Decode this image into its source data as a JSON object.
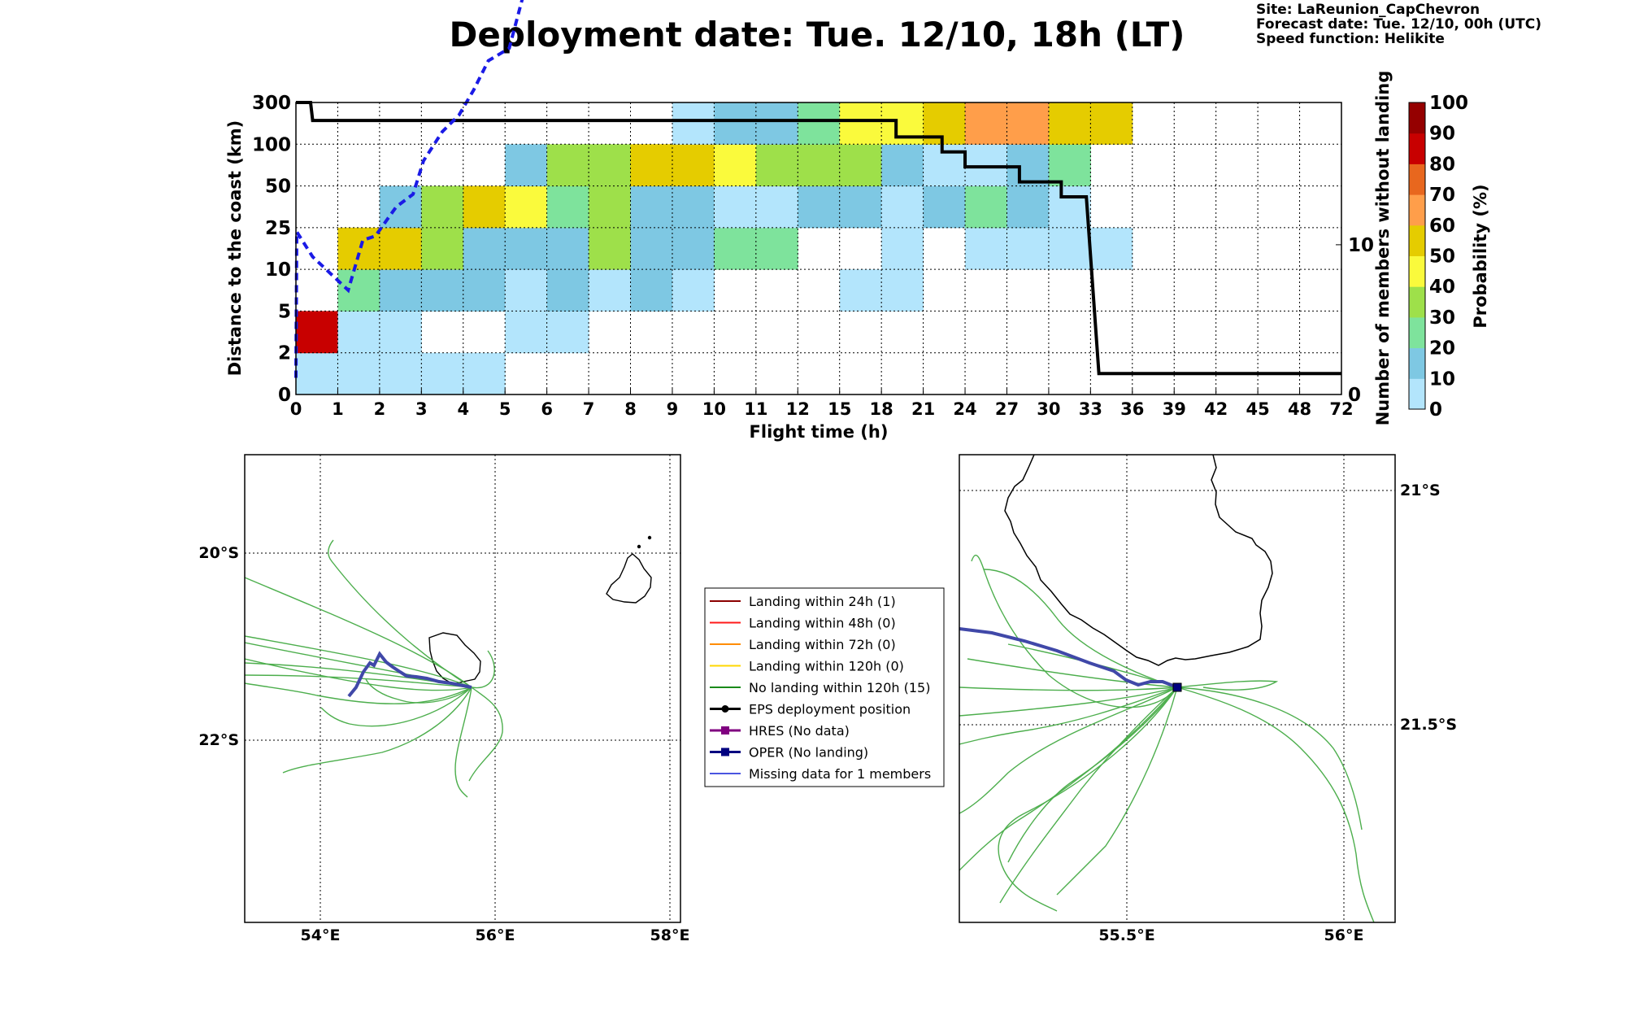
{
  "title": "Deployment date: Tue. 12/10, 18h (LT)",
  "meta": {
    "site": "Site: LaReunion_CapChevron",
    "forecast": "Forecast date: Tue. 12/10, 00h (UTC)",
    "speed": "Speed function: Helikite"
  },
  "chart_data": [
    {
      "type": "heatmap",
      "xlabel": "Flight time (h)",
      "ylabel": "Distance to the coast (km)",
      "y2label": "Number of members without landing",
      "x_tick_labels": [
        "0",
        "1",
        "2",
        "3",
        "4",
        "5",
        "6",
        "7",
        "8",
        "9",
        "10",
        "11",
        "12",
        "15",
        "18",
        "21",
        "24",
        "27",
        "30",
        "33",
        "36",
        "39",
        "42",
        "45",
        "48",
        "72"
      ],
      "y_tick_labels": [
        "0",
        "2",
        "5",
        "10",
        "25",
        "50",
        "100",
        "300"
      ],
      "y2_tick_labels": [
        "0",
        "10"
      ],
      "y2_lim": [
        0,
        19.5
      ],
      "grid": true,
      "colorbar": {
        "label": "Probability (%)",
        "ticks": [
          "0",
          "10",
          "20",
          "30",
          "40",
          "50",
          "60",
          "70",
          "80",
          "90",
          "100"
        ],
        "colors": [
          "#b3e5fc",
          "#7ec8e3",
          "#7ee39c",
          "#9ee04a",
          "#fafa3c",
          "#e5cc00",
          "#ff9e4a",
          "#e8671e",
          "#c80000",
          "#950000"
        ]
      },
      "cells": [
        [
          0,
          0,
          0
        ],
        [
          1,
          0,
          0
        ],
        [
          2,
          0,
          0
        ],
        [
          3,
          0,
          0
        ],
        [
          4,
          0,
          0
        ],
        [
          0,
          1,
          8
        ],
        [
          1,
          1,
          0
        ],
        [
          2,
          1,
          0
        ],
        [
          5,
          1,
          0
        ],
        [
          6,
          1,
          0
        ],
        [
          1,
          2,
          2
        ],
        [
          2,
          2,
          1
        ],
        [
          3,
          2,
          1
        ],
        [
          4,
          2,
          1
        ],
        [
          5,
          2,
          0
        ],
        [
          6,
          2,
          1
        ],
        [
          7,
          2,
          0
        ],
        [
          8,
          2,
          1
        ],
        [
          9,
          2,
          0
        ],
        [
          13,
          2,
          0
        ],
        [
          14,
          2,
          0
        ],
        [
          1,
          3,
          5
        ],
        [
          2,
          3,
          5
        ],
        [
          3,
          3,
          3
        ],
        [
          4,
          3,
          1
        ],
        [
          5,
          3,
          1
        ],
        [
          6,
          3,
          1
        ],
        [
          7,
          3,
          3
        ],
        [
          8,
          3,
          1
        ],
        [
          9,
          3,
          1
        ],
        [
          10,
          3,
          2
        ],
        [
          11,
          3,
          2
        ],
        [
          14,
          3,
          0
        ],
        [
          16,
          3,
          0
        ],
        [
          17,
          3,
          0
        ],
        [
          18,
          3,
          0
        ],
        [
          19,
          3,
          0
        ],
        [
          2,
          4,
          1
        ],
        [
          3,
          4,
          3
        ],
        [
          4,
          4,
          5
        ],
        [
          5,
          4,
          4
        ],
        [
          6,
          4,
          2
        ],
        [
          7,
          4,
          3
        ],
        [
          8,
          4,
          1
        ],
        [
          9,
          4,
          1
        ],
        [
          10,
          4,
          0
        ],
        [
          11,
          4,
          0
        ],
        [
          12,
          4,
          1
        ],
        [
          13,
          4,
          1
        ],
        [
          14,
          4,
          0
        ],
        [
          15,
          4,
          1
        ],
        [
          16,
          4,
          2
        ],
        [
          17,
          4,
          1
        ],
        [
          18,
          4,
          0
        ],
        [
          5,
          5,
          1
        ],
        [
          6,
          5,
          3
        ],
        [
          7,
          5,
          3
        ],
        [
          8,
          5,
          5
        ],
        [
          9,
          5,
          5
        ],
        [
          10,
          5,
          4
        ],
        [
          11,
          5,
          3
        ],
        [
          12,
          5,
          3
        ],
        [
          13,
          5,
          3
        ],
        [
          14,
          5,
          1
        ],
        [
          15,
          5,
          0
        ],
        [
          16,
          5,
          0
        ],
        [
          17,
          5,
          1
        ],
        [
          18,
          5,
          2
        ],
        [
          9,
          6,
          0
        ],
        [
          10,
          6,
          1
        ],
        [
          11,
          6,
          1
        ],
        [
          12,
          6,
          2
        ],
        [
          13,
          6,
          4
        ],
        [
          14,
          6,
          4
        ],
        [
          15,
          6,
          5
        ],
        [
          16,
          6,
          6
        ],
        [
          17,
          6,
          6
        ],
        [
          18,
          6,
          5
        ],
        [
          19,
          6,
          5
        ]
      ],
      "members_without_landing": [
        [
          0,
          19.5
        ],
        [
          0.35,
          19.5
        ],
        [
          0.4,
          18.3
        ],
        [
          14.35,
          18.3
        ],
        [
          14.35,
          17.2
        ],
        [
          15.45,
          17.2
        ],
        [
          15.45,
          16.2
        ],
        [
          16,
          16.2
        ],
        [
          16,
          15.2
        ],
        [
          17.3,
          15.2
        ],
        [
          17.3,
          14.2
        ],
        [
          18.3,
          14.2
        ],
        [
          18.3,
          13.2
        ],
        [
          18.9,
          13.2
        ],
        [
          19.2,
          1.4
        ],
        [
          25,
          1.4
        ]
      ],
      "oper_distance_km": [
        [
          0,
          0.4
        ],
        [
          0.02,
          3.9
        ],
        [
          0.4,
          3.3
        ],
        [
          1.25,
          2.5
        ],
        [
          1.6,
          3.7
        ],
        [
          1.9,
          3.8
        ],
        [
          2.4,
          4.5
        ],
        [
          2.8,
          4.8
        ],
        [
          3.05,
          5.6
        ],
        [
          3.5,
          6.3
        ],
        [
          3.9,
          6.7
        ],
        [
          4.25,
          7.3
        ],
        [
          4.6,
          8.0
        ],
        [
          5.1,
          8.3
        ],
        [
          5.55,
          10.0
        ],
        [
          6.1,
          11.7
        ],
        [
          7.0,
          14.0
        ],
        [
          7.9,
          17.2
        ],
        [
          8.5,
          19.5
        ],
        [
          9.5,
          23.0
        ],
        [
          10.2,
          25.2
        ],
        [
          11.5,
          29.0
        ],
        [
          12.5,
          34.0
        ],
        [
          13.0,
          38.0
        ],
        [
          14.5,
          42.0
        ],
        [
          15.6,
          46.0
        ],
        [
          16.0,
          48.5
        ],
        [
          16.6,
          57.0
        ],
        [
          17.0,
          68.0
        ],
        [
          17.2,
          77.0
        ]
      ]
    }
  ],
  "left_map": {
    "lon_labels": [
      "54°E",
      "56°E",
      "58°E"
    ],
    "lat_labels": [
      "20°S",
      "22°S"
    ]
  },
  "right_map": {
    "lon_labels": [
      "55.5°E",
      "56°E"
    ],
    "lat_labels": [
      "21°S",
      "21.5°S"
    ]
  },
  "legend": {
    "items": [
      {
        "label": "Landing within 24h (1)",
        "color": "#8b0000",
        "marker": "none"
      },
      {
        "label": "Landing within 48h (0)",
        "color": "#ff1a1a",
        "marker": "none"
      },
      {
        "label": "Landing within 72h (0)",
        "color": "#ff8c00",
        "marker": "none"
      },
      {
        "label": "Landing within 120h (0)",
        "color": "#ffd700",
        "marker": "none"
      },
      {
        "label": "No landing within 120h (15)",
        "color": "#1a8a1a",
        "marker": "none"
      },
      {
        "label": "EPS deployment position",
        "color": "#000000",
        "marker": "circle"
      },
      {
        "label": "HRES (No data)",
        "color": "#800080",
        "marker": "square"
      },
      {
        "label": "OPER (No landing)",
        "color": "#000080",
        "marker": "square"
      },
      {
        "label": "Missing data for 1 members",
        "color": "#4a55e0",
        "marker": "none"
      }
    ]
  }
}
